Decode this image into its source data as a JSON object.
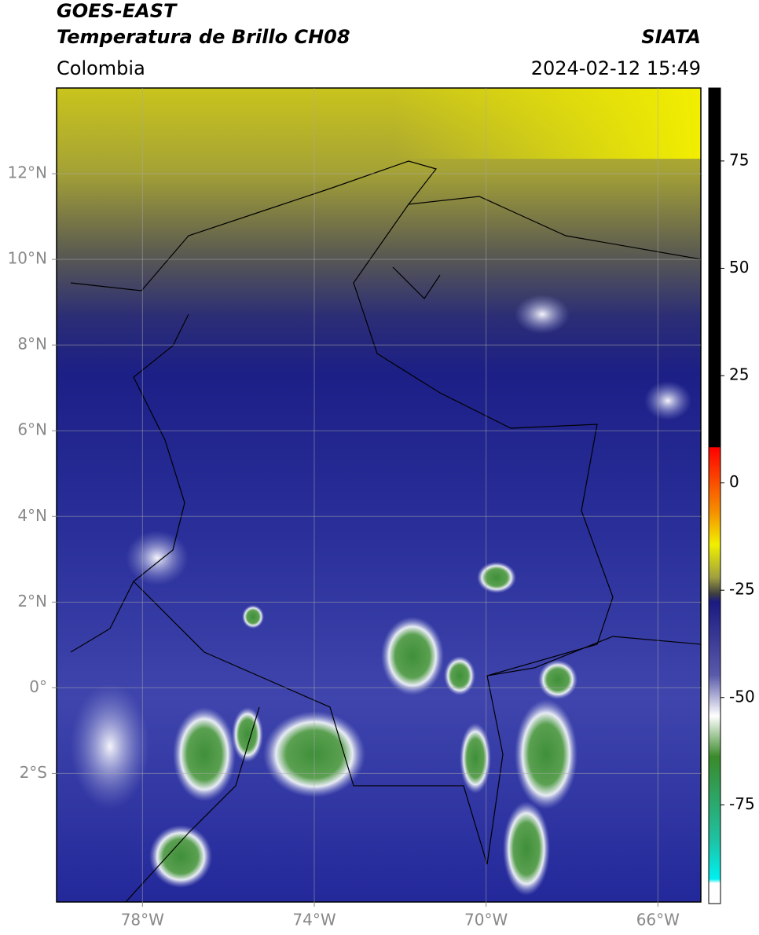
{
  "header": {
    "title": "GOES-EAST",
    "subtitle": "Temperatura de Brillo CH08",
    "region": "Colombia",
    "source": "SIATA",
    "datetime": "2024-02-12 15:49"
  },
  "map": {
    "xlim": [
      -80,
      -65
    ],
    "ylim": [
      -5,
      14
    ],
    "xticks": [
      {
        "value": -78,
        "label": "78°W"
      },
      {
        "value": -74,
        "label": "74°W"
      },
      {
        "value": -70,
        "label": "70°W"
      },
      {
        "value": -66,
        "label": "66°W"
      }
    ],
    "yticks": [
      {
        "value": 12,
        "label": "12°N"
      },
      {
        "value": 10,
        "label": "10°N"
      },
      {
        "value": 8,
        "label": "8°N"
      },
      {
        "value": 6,
        "label": "6°N"
      },
      {
        "value": 4,
        "label": "4°N"
      },
      {
        "value": 2,
        "label": "2°N"
      },
      {
        "value": 0,
        "label": "0°"
      },
      {
        "value": -2,
        "label": "2°S"
      }
    ]
  },
  "colorbar": {
    "lim": [
      -98,
      92
    ],
    "ticks": [
      75,
      50,
      25,
      0,
      -25,
      -50,
      -75
    ]
  }
}
